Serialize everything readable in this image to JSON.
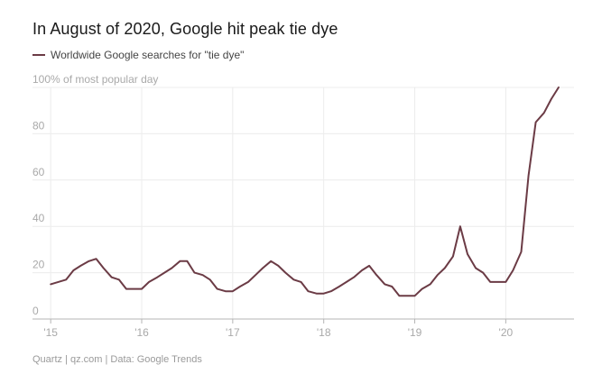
{
  "title": "In August of 2020, Google hit peak tie dye",
  "legend_label": "Worldwide Google searches for \"tie dye\"",
  "footer": "Quartz | qz.com | Data: Google Trends",
  "colors": {
    "line": "#6b3b45",
    "grid": "#ececec",
    "axis": "#b5b5b5"
  },
  "chart_data": {
    "type": "line",
    "title": "In August of 2020, Google hit peak tie dye",
    "y_unit_label": "100% of most popular day",
    "ylim": [
      0,
      100
    ],
    "y_ticks": [
      0,
      20,
      40,
      60,
      80
    ],
    "xlim": [
      2014.8,
      2020.75
    ],
    "x_ticks": [
      {
        "value": 2015,
        "label": "'15"
      },
      {
        "value": 2016,
        "label": "'16"
      },
      {
        "value": 2017,
        "label": "'17"
      },
      {
        "value": 2018,
        "label": "'18"
      },
      {
        "value": 2019,
        "label": "'19"
      },
      {
        "value": 2020,
        "label": "'20"
      }
    ],
    "grid": true,
    "series": [
      {
        "name": "Worldwide Google searches for \"tie dye\"",
        "points": [
          [
            2015.0,
            15
          ],
          [
            2015.17,
            17
          ],
          [
            2015.25,
            21
          ],
          [
            2015.33,
            23
          ],
          [
            2015.42,
            25
          ],
          [
            2015.5,
            26
          ],
          [
            2015.58,
            22
          ],
          [
            2015.67,
            18
          ],
          [
            2015.75,
            17
          ],
          [
            2015.83,
            13
          ],
          [
            2016.0,
            13
          ],
          [
            2016.08,
            16
          ],
          [
            2016.17,
            18
          ],
          [
            2016.25,
            20
          ],
          [
            2016.33,
            22
          ],
          [
            2016.42,
            25
          ],
          [
            2016.5,
            25
          ],
          [
            2016.58,
            20
          ],
          [
            2016.67,
            19
          ],
          [
            2016.75,
            17
          ],
          [
            2016.83,
            13
          ],
          [
            2016.92,
            12
          ],
          [
            2017.0,
            12
          ],
          [
            2017.08,
            14
          ],
          [
            2017.17,
            16
          ],
          [
            2017.25,
            19
          ],
          [
            2017.33,
            22
          ],
          [
            2017.42,
            25
          ],
          [
            2017.5,
            23
          ],
          [
            2017.58,
            20
          ],
          [
            2017.67,
            17
          ],
          [
            2017.75,
            16
          ],
          [
            2017.83,
            12
          ],
          [
            2017.92,
            11
          ],
          [
            2018.0,
            11
          ],
          [
            2018.08,
            12
          ],
          [
            2018.17,
            14
          ],
          [
            2018.25,
            16
          ],
          [
            2018.33,
            18
          ],
          [
            2018.42,
            21
          ],
          [
            2018.5,
            23
          ],
          [
            2018.58,
            19
          ],
          [
            2018.67,
            15
          ],
          [
            2018.75,
            14
          ],
          [
            2018.83,
            10
          ],
          [
            2018.92,
            10
          ],
          [
            2019.0,
            10
          ],
          [
            2019.08,
            13
          ],
          [
            2019.17,
            15
          ],
          [
            2019.25,
            19
          ],
          [
            2019.33,
            22
          ],
          [
            2019.42,
            27
          ],
          [
            2019.5,
            40
          ],
          [
            2019.58,
            28
          ],
          [
            2019.67,
            22
          ],
          [
            2019.75,
            20
          ],
          [
            2019.83,
            16
          ],
          [
            2019.92,
            16
          ],
          [
            2020.0,
            16
          ],
          [
            2020.08,
            21
          ],
          [
            2020.17,
            29
          ],
          [
            2020.25,
            62
          ],
          [
            2020.33,
            85
          ],
          [
            2020.42,
            89
          ],
          [
            2020.5,
            95
          ],
          [
            2020.58,
            100
          ]
        ]
      }
    ]
  }
}
